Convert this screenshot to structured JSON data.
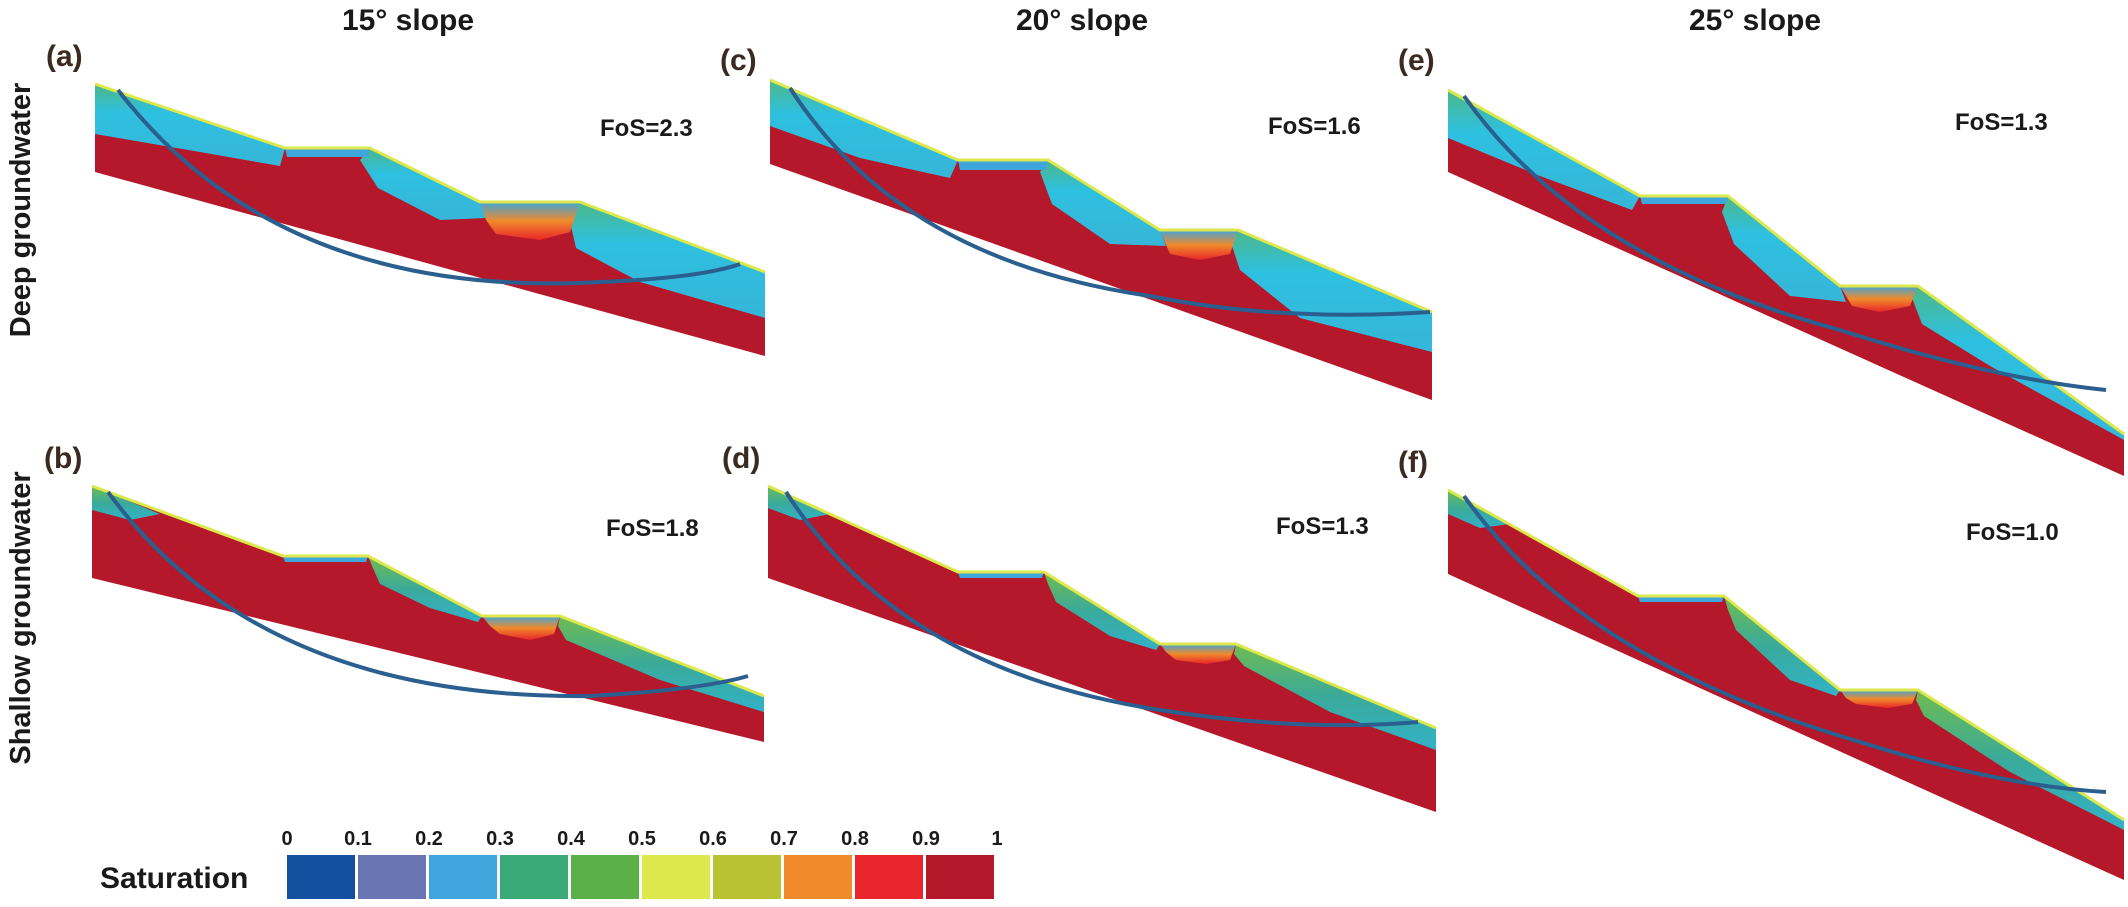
{
  "columns": [
    {
      "title": "15° slope"
    },
    {
      "title": "20° slope"
    },
    {
      "title": "25° slope"
    }
  ],
  "rows": [
    {
      "title": "Deep groundwater"
    },
    {
      "title": "Shallow groundwater"
    }
  ],
  "panels": [
    {
      "label": "(a)",
      "fos": "FoS=2.3",
      "slope_deg": 15,
      "groundwater": "deep"
    },
    {
      "label": "(c)",
      "fos": "FoS=1.6",
      "slope_deg": 20,
      "groundwater": "deep"
    },
    {
      "label": "(e)",
      "fos": "FoS=1.3",
      "slope_deg": 25,
      "groundwater": "deep"
    },
    {
      "label": "(b)",
      "fos": "FoS=1.8",
      "slope_deg": 15,
      "groundwater": "shallow"
    },
    {
      "label": "(d)",
      "fos": "FoS=1.3",
      "slope_deg": 20,
      "groundwater": "shallow"
    },
    {
      "label": "(f)",
      "fos": "FoS=1.0",
      "slope_deg": 25,
      "groundwater": "shallow"
    }
  ],
  "legend": {
    "title": "Saturation",
    "ticks": [
      "0",
      "0.1",
      "0.2",
      "0.3",
      "0.4",
      "0.5",
      "0.6",
      "0.7",
      "0.8",
      "0.9",
      "1"
    ],
    "colors": [
      "#1450a0",
      "#6a76b4",
      "#3ea6dc",
      "#3aaa78",
      "#5cb048",
      "#dde84c",
      "#b8c232",
      "#f08a2a",
      "#e8252a",
      "#b5182a"
    ]
  },
  "colors": {
    "saturated": "#b5182a",
    "saturated_edge": "#e8252a",
    "wet_front": "#f08a2a",
    "mid": "#3aaa78",
    "dry": "#2ec0e0",
    "surface": "#dde84c",
    "slip_surface": "#2a5f8f",
    "pond": "#3ea6dc"
  }
}
